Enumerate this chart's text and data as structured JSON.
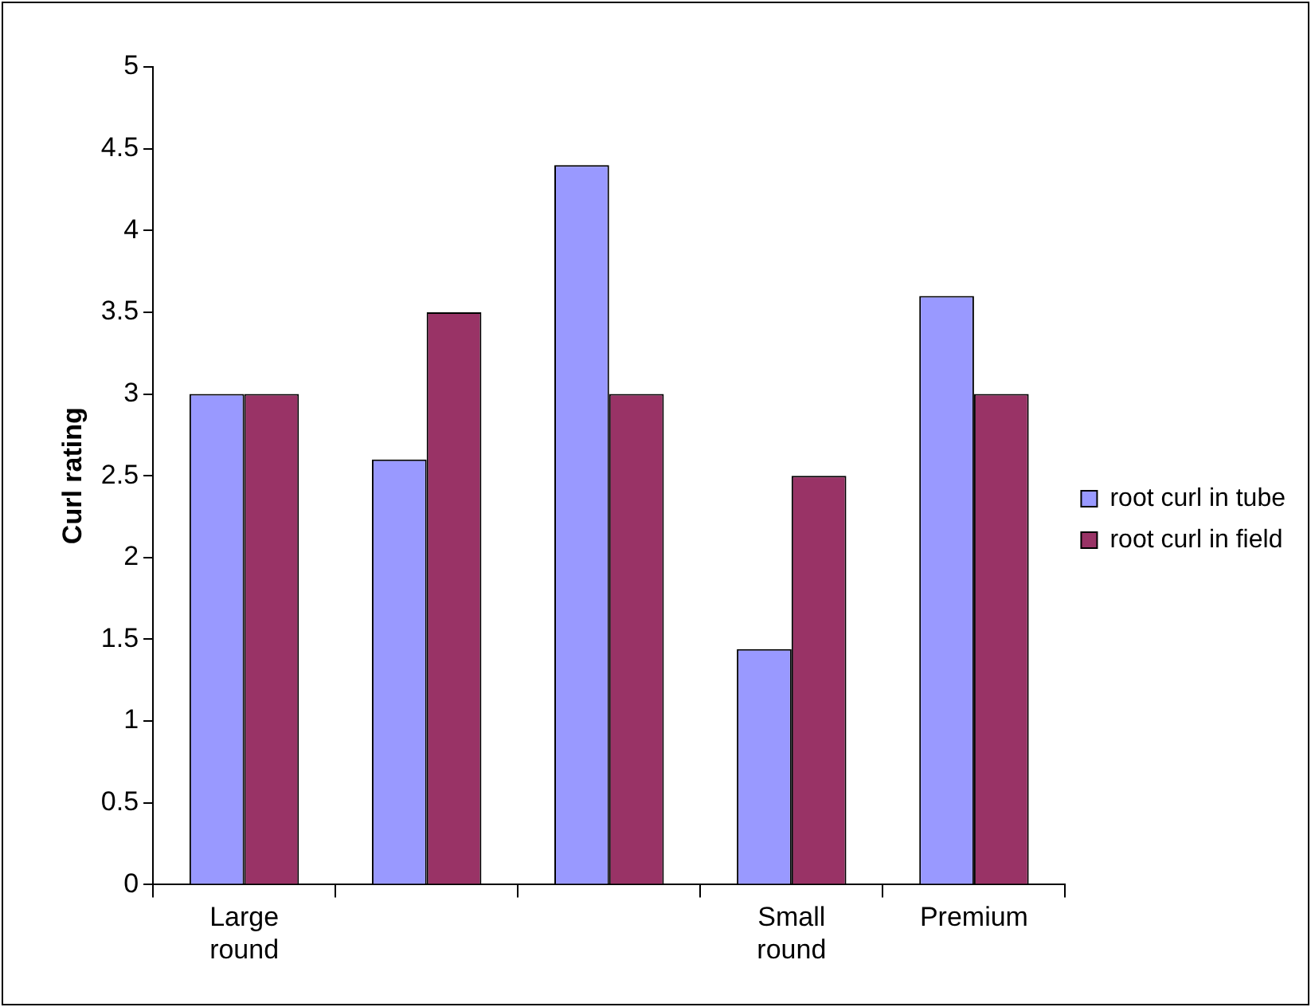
{
  "chart_data": {
    "type": "bar",
    "ylabel": "Curl rating",
    "categories": [
      "Large round",
      null,
      null,
      "Small round",
      "Premium"
    ],
    "series": [
      {
        "name": "root curl in tube",
        "color": "#9999ff",
        "values": [
          3,
          2.6,
          4.4,
          1.44,
          3.6
        ]
      },
      {
        "name": "root curl in field",
        "color": "#993366",
        "values": [
          3,
          3.5,
          3,
          2.5,
          3
        ]
      }
    ],
    "ylim": [
      0,
      5
    ],
    "yticks": [
      0,
      0.5,
      1,
      1.5,
      2,
      2.5,
      3,
      3.5,
      4,
      4.5,
      5
    ],
    "grid": false,
    "legend": "right"
  }
}
